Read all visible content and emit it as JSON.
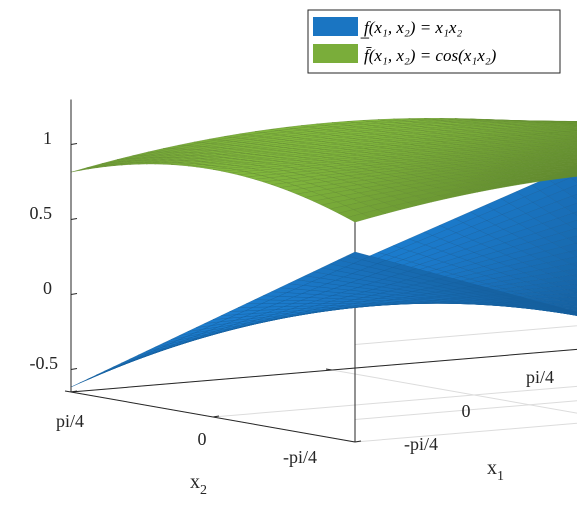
{
  "chart_data": {
    "type": "surface",
    "title": "",
    "x_axis": {
      "label": "x",
      "label_sub": "1",
      "ticks": [
        {
          "value": 0.785398,
          "label": "pi/4"
        },
        {
          "value": 0,
          "label": "0"
        },
        {
          "value": -0.785398,
          "label": "-pi/4"
        }
      ],
      "range": [
        -0.785398,
        0.785398
      ]
    },
    "y_axis": {
      "label": "x",
      "label_sub": "2",
      "ticks": [
        {
          "value": 0.785398,
          "label": "pi/4"
        },
        {
          "value": 0,
          "label": "0"
        },
        {
          "value": -0.785398,
          "label": "-pi/4"
        }
      ],
      "range": [
        -0.785398,
        0.785398
      ]
    },
    "z_axis": {
      "label": "",
      "ticks": [
        {
          "value": 1,
          "label": "1"
        },
        {
          "value": 0.5,
          "label": "0.5"
        },
        {
          "value": 0,
          "label": "0"
        },
        {
          "value": -0.5,
          "label": "-0.5"
        }
      ],
      "range": [
        -0.65,
        1.3
      ]
    },
    "grid": true,
    "legend_position": "top-right",
    "series": [
      {
        "name": "f̲(x₁, x₂) = x₁x₂",
        "expression": "x1*x2",
        "color": "#1a75c2",
        "min_value": -0.617,
        "max_value": 0.617
      },
      {
        "name": "f̄(x₁, x₂) = cos(x₁x₂)",
        "expression": "cos(x1*x2)",
        "color": "#7aad3a",
        "min_value": 0.815,
        "max_value": 1.0
      }
    ],
    "mesh_divisions": 34
  }
}
